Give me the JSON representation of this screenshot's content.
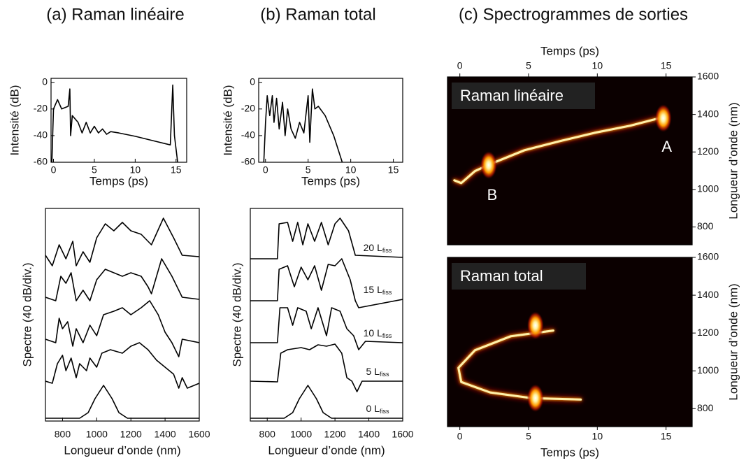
{
  "chart_data": [
    {
      "type": "line",
      "title": "(a) Raman linéaire",
      "xlabel": "Temps (ps)",
      "ylabel": "Intensité (dB)",
      "xlim": [
        -0.3,
        16.3
      ],
      "xticks": [
        0,
        5,
        10,
        15
      ],
      "ylim": [
        -60,
        3
      ],
      "yticks": [
        0,
        -20,
        -40,
        -60
      ],
      "series": [
        {
          "color": "#000000",
          "x": [
            -0.2,
            0,
            0.5,
            1,
            1.8,
            2,
            2.1,
            2.3,
            3,
            3.5,
            4,
            4.5,
            5,
            5.5,
            6,
            6.5,
            7,
            8,
            10,
            12,
            14.3,
            14.6,
            14.8,
            15,
            15.2
          ],
          "values": [
            -60,
            -20,
            -13,
            -20,
            -18,
            -5,
            -40,
            -25,
            -30,
            -38,
            -30,
            -38,
            -33,
            -38,
            -35,
            -39,
            -37,
            -38,
            -40.5,
            -43.5,
            -47,
            -2,
            -40,
            -50,
            -60
          ]
        }
      ]
    },
    {
      "type": "spectra",
      "xlabel": "Longueur d’onde (nm)",
      "ylabel": "Spectre (40 dB/div.)",
      "xlim": [
        700,
        1600
      ],
      "xticks": [
        800,
        1000,
        1200,
        1400,
        1600
      ],
      "ylim": [
        0,
        6.08
      ],
      "series": [
        {
          "color": "#000000",
          "x": [
            700,
            900,
            950,
            990,
            1040,
            1090,
            1130,
            1180,
            1600
          ],
          "values": [
            0.08,
            0.08,
            0.24,
            0.64,
            1.02,
            0.64,
            0.24,
            0.08,
            0.08
          ]
        },
        {
          "color": "#000000",
          "x": [
            700,
            740,
            770,
            800,
            820,
            850,
            880,
            900,
            940,
            960,
            1000,
            1030,
            1080,
            1150,
            1200,
            1250,
            1300,
            1350,
            1400,
            1450,
            1480,
            1500,
            1530,
            1600
          ],
          "values": [
            1.14,
            1.08,
            1.64,
            1.88,
            1.44,
            1.8,
            1.24,
            1.64,
            1.44,
            1.8,
            1.54,
            1.94,
            2.04,
            1.94,
            2.14,
            2.24,
            2.04,
            1.74,
            1.54,
            1.34,
            0.94,
            1.24,
            0.94,
            1.08
          ]
        },
        {
          "color": "#000000",
          "x": [
            700,
            760,
            780,
            800,
            830,
            860,
            880,
            920,
            960,
            1000,
            1040,
            1100,
            1150,
            1200,
            1260,
            1310,
            1360,
            1400,
            1440,
            1480,
            1500,
            1600
          ],
          "values": [
            2.34,
            2.24,
            2.94,
            2.64,
            2.84,
            2.14,
            2.64,
            2.24,
            2.74,
            2.44,
            3.04,
            3.14,
            3.24,
            3.04,
            3.24,
            3.44,
            3.04,
            2.54,
            2.24,
            1.84,
            2.34,
            2.24
          ]
        },
        {
          "color": "#000000",
          "x": [
            700,
            760,
            790,
            820,
            850,
            880,
            920,
            960,
            1000,
            1050,
            1100,
            1150,
            1200,
            1260,
            1300,
            1320,
            1380,
            1440,
            1500,
            1600
          ],
          "values": [
            3.54,
            3.44,
            4.14,
            3.94,
            4.24,
            3.44,
            3.74,
            3.44,
            4.04,
            4.34,
            4.24,
            4.14,
            4.24,
            4.14,
            3.84,
            3.64,
            4.64,
            4.14,
            3.54,
            3.48
          ]
        },
        {
          "color": "#000000",
          "x": [
            700,
            740,
            780,
            820,
            860,
            880,
            920,
            960,
            1000,
            1050,
            1100,
            1150,
            1200,
            1260,
            1320,
            1390,
            1450,
            1500,
            1600
          ],
          "values": [
            4.74,
            4.44,
            5.04,
            4.64,
            5.14,
            4.44,
            4.84,
            4.54,
            5.24,
            5.64,
            5.44,
            5.68,
            5.44,
            5.34,
            5.04,
            5.8,
            5.24,
            4.74,
            4.7
          ]
        }
      ]
    },
    {
      "type": "line",
      "title": "(b) Raman total",
      "xlabel": "Temps (ps)",
      "ylabel": "Intensité (dB)",
      "xlim": [
        -0.8,
        16.1
      ],
      "xticks": [
        0,
        5,
        10,
        15
      ],
      "ylim": [
        -60,
        3
      ],
      "yticks": [
        0,
        -20,
        -40,
        -60
      ],
      "series": [
        {
          "color": "#000000",
          "x": [
            -0.2,
            0,
            0.2,
            0.5,
            0.8,
            1,
            1.3,
            1.6,
            2,
            2.3,
            2.6,
            3,
            3.5,
            4,
            4.5,
            5,
            5.2,
            5.5,
            5.8,
            6.2,
            7,
            8,
            9
          ],
          "values": [
            -60,
            -30,
            -10,
            -25,
            -10,
            -30,
            -12,
            -35,
            -15,
            -40,
            -20,
            -35,
            -42,
            -30,
            -38,
            -10,
            -45,
            -5,
            -20,
            -18,
            -25,
            -40,
            -60
          ]
        }
      ]
    },
    {
      "type": "spectra",
      "xlabel": "Longueur d’onde (nm)",
      "ylabel": "Spectre (40 dB/div.)",
      "xlim": [
        700,
        1600
      ],
      "xticks": [
        800,
        1000,
        1200,
        1400,
        1600
      ],
      "ylim": [
        0,
        6.08
      ],
      "series": [
        {
          "name": "0 L",
          "subscript": "fiss",
          "color": "#000000",
          "x": [
            700,
            900,
            950,
            990,
            1040,
            1090,
            1130,
            1180,
            1600
          ],
          "values": [
            0.08,
            0.08,
            0.24,
            0.64,
            1.02,
            0.64,
            0.24,
            0.08,
            0.08
          ]
        },
        {
          "name": "5 L",
          "subscript": "fiss",
          "color": "#000000",
          "x": [
            700,
            860,
            880,
            920,
            1000,
            1050,
            1100,
            1150,
            1200,
            1240,
            1270,
            1300,
            1330,
            1360,
            1600
          ],
          "values": [
            1.14,
            1.12,
            1.94,
            2.04,
            2.1,
            2.04,
            2.18,
            2.14,
            2.2,
            1.94,
            1.24,
            1.14,
            0.84,
            1.14,
            1.14
          ]
        },
        {
          "name": "10 L",
          "subscript": "fiss",
          "color": "#000000",
          "x": [
            700,
            860,
            875,
            920,
            950,
            980,
            1030,
            1060,
            1100,
            1150,
            1180,
            1230,
            1270,
            1310,
            1340,
            1380,
            1600
          ],
          "values": [
            2.24,
            2.24,
            3.24,
            3.24,
            2.74,
            3.24,
            3.14,
            2.64,
            3.24,
            2.44,
            3.24,
            3.14,
            2.64,
            2.44,
            2.04,
            2.28,
            2.24
          ]
        },
        {
          "name": "15 L",
          "subscript": "fiss",
          "color": "#000000",
          "x": [
            700,
            860,
            870,
            920,
            960,
            1000,
            1040,
            1080,
            1120,
            1160,
            1200,
            1240,
            1290,
            1320,
            1340,
            1600
          ],
          "values": [
            3.44,
            3.44,
            4.34,
            4.44,
            3.84,
            4.4,
            4.04,
            4.44,
            3.74,
            4.48,
            4.44,
            4.64,
            4.04,
            3.44,
            3.24,
            3.48
          ]
        },
        {
          "name": "20 L",
          "subscript": "fiss",
          "color": "#000000",
          "x": [
            700,
            860,
            870,
            920,
            950,
            980,
            1010,
            1040,
            1080,
            1120,
            1160,
            1200,
            1230,
            1280,
            1320,
            1600
          ],
          "values": [
            4.64,
            4.64,
            5.64,
            5.68,
            5.14,
            5.68,
            5.04,
            5.64,
            5.14,
            5.68,
            5.04,
            5.64,
            5.8,
            5.44,
            4.74,
            4.68
          ]
        }
      ]
    },
    {
      "type": "spectrogram",
      "title": "(c) Spectrogrammes de sorties",
      "label": "Raman linéaire",
      "xlabel": "Temps (ps)",
      "ylabel": "Longueur d’onde (nm)",
      "xaxis_position": "top",
      "xlim": [
        -0.9,
        16.9
      ],
      "xticks": [
        0,
        5,
        10,
        15
      ],
      "ylim": [
        705,
        1600
      ],
      "yticks": [
        800,
        1000,
        1200,
        1400,
        1600
      ],
      "ridge": {
        "x": [
          -0.4,
          0.1,
          1.1,
          2.2,
          4.7,
          7.3,
          9.8,
          12.4,
          14.7
        ],
        "values": [
          1049,
          1034,
          1098,
          1135,
          1209,
          1258,
          1302,
          1340,
          1384
        ]
      },
      "spots": {
        "x": [
          14.8,
          2.1
        ],
        "values": [
          1380,
          1130
        ]
      },
      "spot_labels": [
        "A",
        "B"
      ]
    },
    {
      "type": "spectrogram",
      "label": "Raman total",
      "xlabel": "Temps (ps)",
      "ylabel": "Longueur d’onde (nm)",
      "xaxis_position": "bottom",
      "xlim": [
        -0.9,
        16.9
      ],
      "xticks": [
        0,
        5,
        10,
        15
      ],
      "ylim": [
        705,
        1600
      ],
      "yticks": [
        800,
        1000,
        1200,
        1400,
        1600
      ],
      "ridge": {
        "x": [
          6.8,
          3.7,
          1.1,
          -0.1,
          0.1,
          2.2,
          5.2,
          8.8
        ],
        "values": [
          1213,
          1183,
          1109,
          1016,
          941,
          886,
          856,
          848
        ]
      },
      "spots": {
        "x": [
          5.5,
          5.5
        ],
        "values": [
          1240,
          856
        ]
      }
    }
  ]
}
